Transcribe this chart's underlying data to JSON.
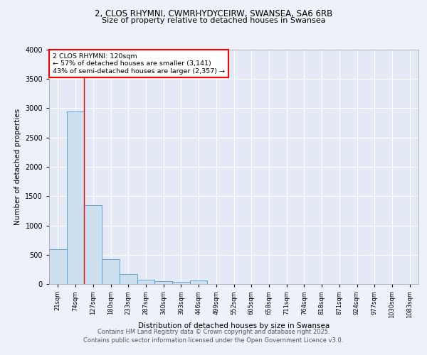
{
  "title1": "2, CLOS RHYMNI, CWMRHYDYCEIRW, SWANSEA, SA6 6RB",
  "title2": "Size of property relative to detached houses in Swansea",
  "xlabel": "Distribution of detached houses by size in Swansea",
  "ylabel": "Number of detached properties",
  "bins": [
    "21sqm",
    "74sqm",
    "127sqm",
    "180sqm",
    "233sqm",
    "287sqm",
    "340sqm",
    "393sqm",
    "446sqm",
    "499sqm",
    "552sqm",
    "605sqm",
    "658sqm",
    "711sqm",
    "764sqm",
    "818sqm",
    "871sqm",
    "924sqm",
    "977sqm",
    "1030sqm",
    "1083sqm"
  ],
  "values": [
    590,
    2950,
    1350,
    430,
    165,
    75,
    45,
    35,
    55,
    0,
    0,
    0,
    0,
    0,
    0,
    0,
    0,
    0,
    0,
    0,
    0
  ],
  "bar_color": "#cce0f0",
  "bar_edge_color": "#5599cc",
  "red_line_index": 2,
  "annotation_text": "2 CLOS RHYMNI: 120sqm\n← 57% of detached houses are smaller (3,141)\n43% of semi-detached houses are larger (2,357) →",
  "annotation_box_color": "white",
  "annotation_box_edge_color": "red",
  "ylim": [
    0,
    4000
  ],
  "yticks": [
    0,
    500,
    1000,
    1500,
    2000,
    2500,
    3000,
    3500,
    4000
  ],
  "footer1": "Contains HM Land Registry data © Crown copyright and database right 2025.",
  "footer2": "Contains public sector information licensed under the Open Government Licence v3.0.",
  "bg_color": "#eef2f8",
  "plot_bg_color": "#e4eaf5"
}
